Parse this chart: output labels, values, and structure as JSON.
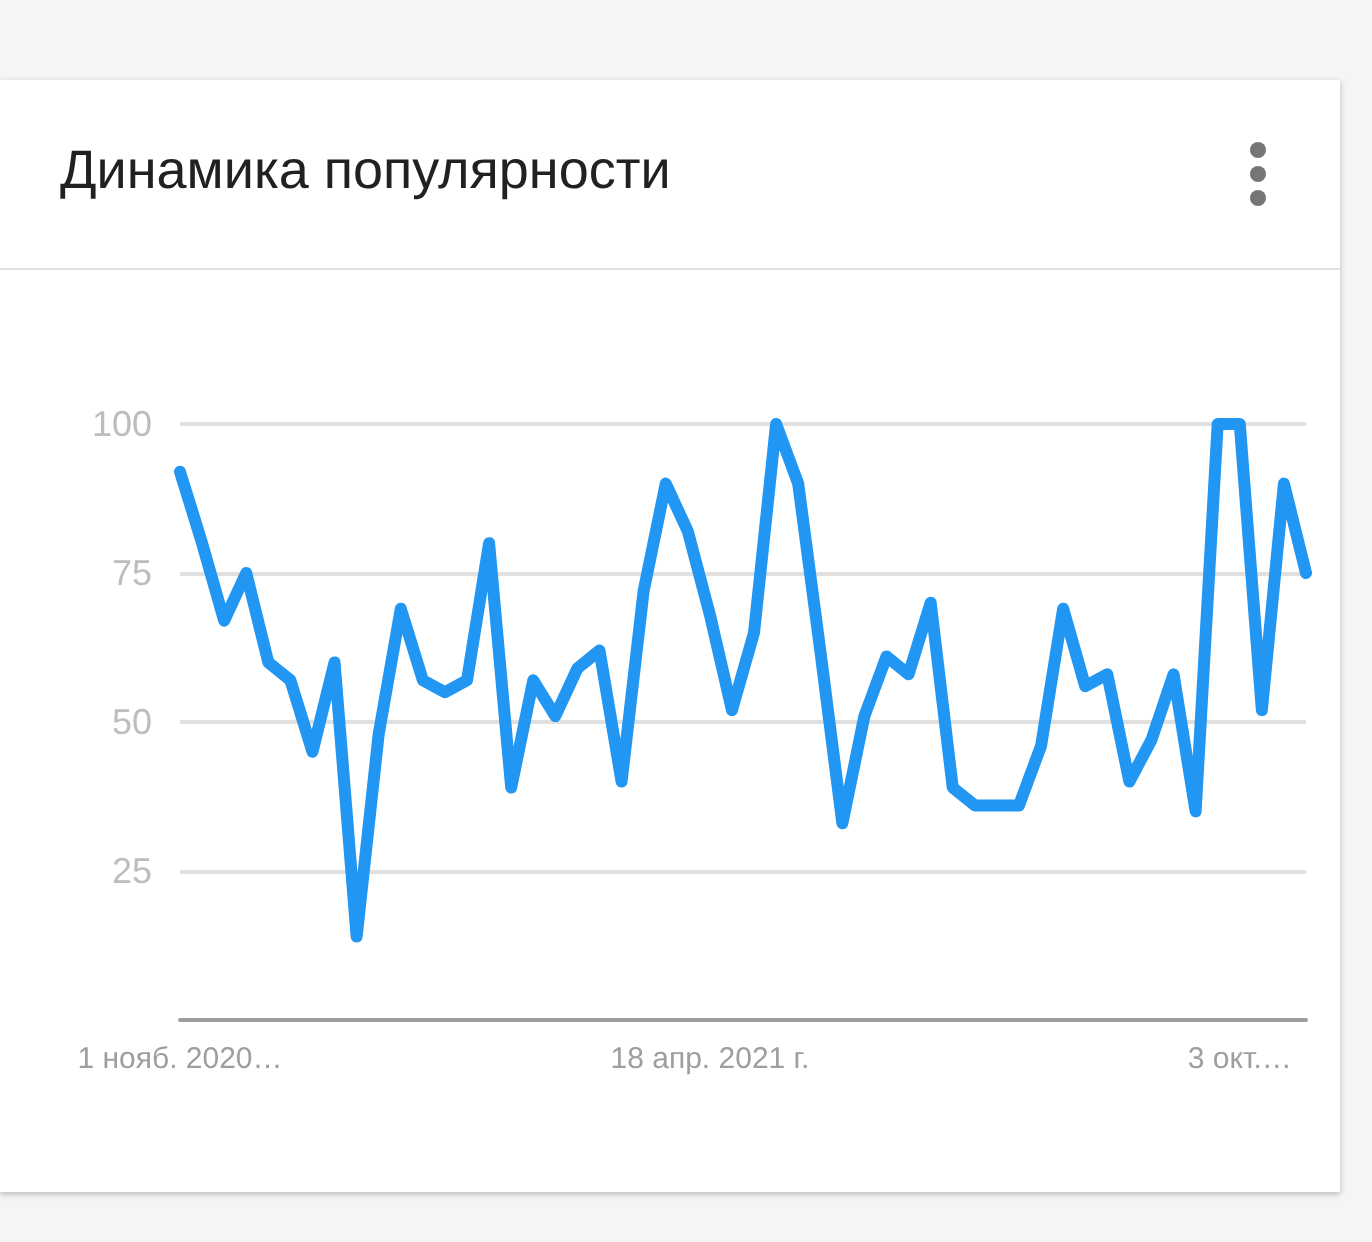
{
  "chart_data": {
    "type": "line",
    "title": "Динамика популярности",
    "categories": [
      "1 нояб. 2020…",
      null,
      null,
      null,
      null,
      null,
      null,
      null,
      null,
      null,
      null,
      null,
      null,
      null,
      null,
      null,
      null,
      null,
      null,
      null,
      null,
      null,
      null,
      null,
      "18 апр. 2021 г.",
      null,
      null,
      null,
      null,
      null,
      null,
      null,
      null,
      null,
      null,
      null,
      null,
      null,
      null,
      null,
      null,
      null,
      null,
      null,
      null,
      null,
      null,
      null,
      "3 окт.…",
      null,
      null,
      null
    ],
    "series": [
      {
        "color": "#2196f3",
        "values": [
          92,
          80,
          67,
          75,
          60,
          57,
          45,
          60,
          14,
          48,
          69,
          57,
          55,
          57,
          80,
          39,
          57,
          51,
          59,
          62,
          40,
          72,
          90,
          82,
          68,
          52,
          65,
          100,
          90,
          62,
          33,
          51,
          61,
          58,
          70,
          39,
          36,
          36,
          36,
          46,
          69,
          56,
          58,
          40,
          47,
          58,
          35,
          100,
          100,
          52,
          90,
          75
        ]
      }
    ],
    "ylim": [
      0,
      100
    ],
    "yticks": [
      25,
      50,
      75,
      100
    ],
    "grid": "y",
    "marker": "none",
    "line_style": "solid"
  }
}
